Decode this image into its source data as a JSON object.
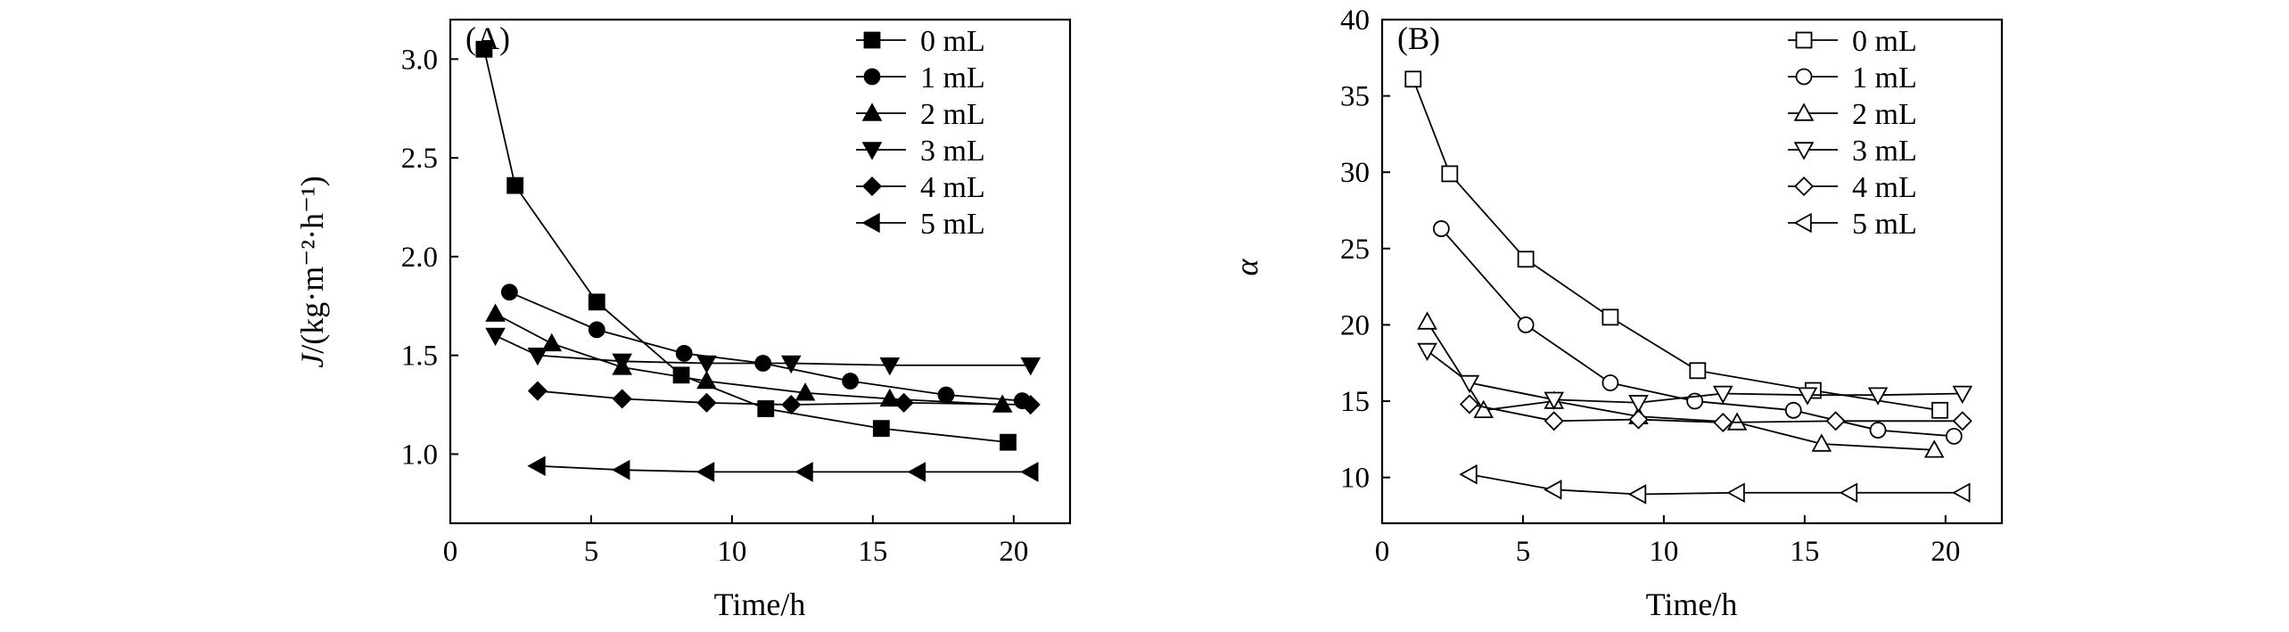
{
  "chart_data": [
    {
      "type": "line",
      "panel_label": "(A)",
      "xlabel": "Time/h",
      "ylabel": "J/(kg·m⁻²·h⁻¹)",
      "ylabel_italic_part": "J",
      "ylabel_rest": "/(kg·m⁻²·h⁻¹)",
      "xlim": [
        0,
        22
      ],
      "ylim": [
        0.65,
        3.2
      ],
      "xticks": [
        0,
        5,
        10,
        15,
        20
      ],
      "xtick_labels": [
        "0",
        "5",
        "10",
        "15",
        "20"
      ],
      "yticks": [
        1.0,
        1.5,
        2.0,
        2.5,
        3.0
      ],
      "ytick_labels": [
        "1.0",
        "1.5",
        "2.0",
        "2.5",
        "3.0"
      ],
      "grid": false,
      "legend_position": "top-right",
      "marker_fill": "filled",
      "series": [
        {
          "name": "0 mL",
          "marker": "square",
          "x": [
            1.2,
            2.3,
            5.2,
            8.2,
            11.2,
            15.3,
            19.8
          ],
          "y": [
            3.05,
            2.36,
            1.77,
            1.4,
            1.23,
            1.13,
            1.06
          ]
        },
        {
          "name": "1 mL",
          "marker": "circle",
          "x": [
            2.1,
            5.2,
            8.3,
            11.1,
            14.2,
            17.6,
            20.3
          ],
          "y": [
            1.82,
            1.63,
            1.51,
            1.46,
            1.37,
            1.3,
            1.27
          ]
        },
        {
          "name": "2 mL",
          "marker": "triangle-up",
          "x": [
            1.6,
            3.6,
            6.1,
            9.1,
            12.6,
            15.6,
            19.6
          ],
          "y": [
            1.71,
            1.56,
            1.44,
            1.37,
            1.31,
            1.28,
            1.25
          ]
        },
        {
          "name": "3 mL",
          "marker": "triangle-down",
          "x": [
            1.6,
            3.1,
            6.1,
            9.1,
            12.1,
            15.6,
            20.6
          ],
          "y": [
            1.6,
            1.5,
            1.47,
            1.46,
            1.46,
            1.45,
            1.45
          ]
        },
        {
          "name": "4 mL",
          "marker": "diamond",
          "x": [
            3.1,
            6.1,
            9.1,
            12.1,
            16.1,
            20.6
          ],
          "y": [
            1.32,
            1.28,
            1.26,
            1.25,
            1.26,
            1.25
          ]
        },
        {
          "name": "5 mL",
          "marker": "triangle-left",
          "x": [
            3.1,
            6.1,
            9.1,
            12.6,
            16.6,
            20.6
          ],
          "y": [
            0.94,
            0.92,
            0.91,
            0.91,
            0.91,
            0.91
          ]
        }
      ]
    },
    {
      "type": "line",
      "panel_label": "(B)",
      "xlabel": "Time/h",
      "ylabel": "α",
      "xlim": [
        0,
        22
      ],
      "ylim": [
        7,
        40
      ],
      "xticks": [
        0,
        5,
        10,
        15,
        20
      ],
      "xtick_labels": [
        "0",
        "5",
        "10",
        "15",
        "20"
      ],
      "yticks": [
        10,
        15,
        20,
        25,
        30,
        35,
        40
      ],
      "ytick_labels": [
        "10",
        "15",
        "20",
        "25",
        "30",
        "35",
        "40"
      ],
      "grid": false,
      "legend_position": "top-right",
      "marker_fill": "open",
      "series": [
        {
          "name": "0 mL",
          "marker": "square",
          "x": [
            1.1,
            2.4,
            5.1,
            8.1,
            11.2,
            15.3,
            19.8
          ],
          "y": [
            36.1,
            29.9,
            24.3,
            20.5,
            17.0,
            15.7,
            14.4
          ]
        },
        {
          "name": "1 mL",
          "marker": "circle",
          "x": [
            2.1,
            5.1,
            8.1,
            11.1,
            14.6,
            17.6,
            20.3
          ],
          "y": [
            26.3,
            20.0,
            16.2,
            15.0,
            14.4,
            13.1,
            12.7
          ]
        },
        {
          "name": "2 mL",
          "marker": "triangle-up",
          "x": [
            1.6,
            3.6,
            6.1,
            9.1,
            12.6,
            15.6,
            19.6
          ],
          "y": [
            20.2,
            14.4,
            15.0,
            14.0,
            13.6,
            12.2,
            11.8
          ]
        },
        {
          "name": "3 mL",
          "marker": "triangle-down",
          "x": [
            1.6,
            3.1,
            6.1,
            9.1,
            12.1,
            15.1,
            17.6,
            20.6
          ],
          "y": [
            18.3,
            16.2,
            15.1,
            14.9,
            15.5,
            15.4,
            15.4,
            15.5
          ]
        },
        {
          "name": "4 mL",
          "marker": "diamond",
          "x": [
            3.1,
            6.1,
            9.1,
            12.1,
            16.1,
            20.6
          ],
          "y": [
            14.8,
            13.7,
            13.8,
            13.6,
            13.7,
            13.7
          ]
        },
        {
          "name": "5 mL",
          "marker": "triangle-left",
          "x": [
            3.1,
            6.1,
            9.1,
            12.6,
            16.6,
            20.6
          ],
          "y": [
            10.2,
            9.2,
            8.9,
            9.0,
            9.0,
            9.0
          ]
        }
      ]
    }
  ]
}
